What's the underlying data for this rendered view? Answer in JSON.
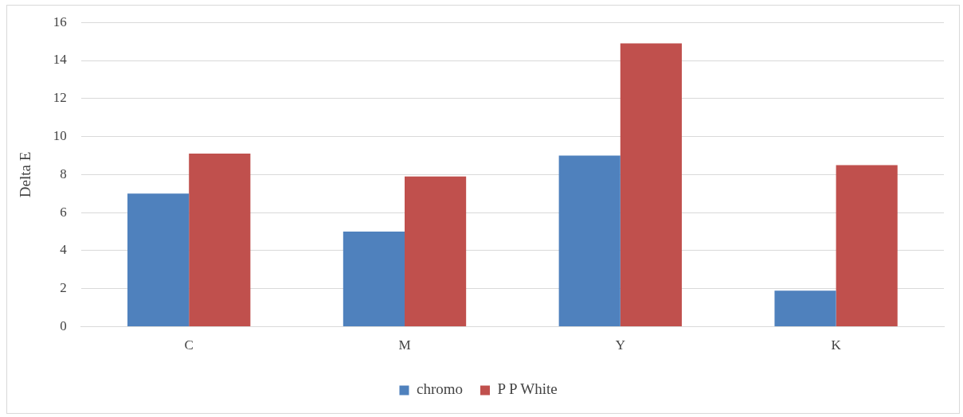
{
  "chart_data": {
    "type": "bar",
    "ylabel": "Delta E",
    "categories": [
      "C",
      "M",
      "Y",
      "K"
    ],
    "series": [
      {
        "name": "chromo",
        "color": "#4f81bd",
        "values": [
          7.0,
          5.0,
          9.0,
          1.9
        ]
      },
      {
        "name": "P P White",
        "color": "#c0504d",
        "values": [
          9.1,
          7.9,
          14.9,
          8.5
        ]
      }
    ],
    "ylim": [
      0,
      16
    ],
    "yticks": [
      0,
      2,
      4,
      6,
      8,
      10,
      12,
      14,
      16
    ],
    "grid": "y",
    "legend": "bottom"
  }
}
